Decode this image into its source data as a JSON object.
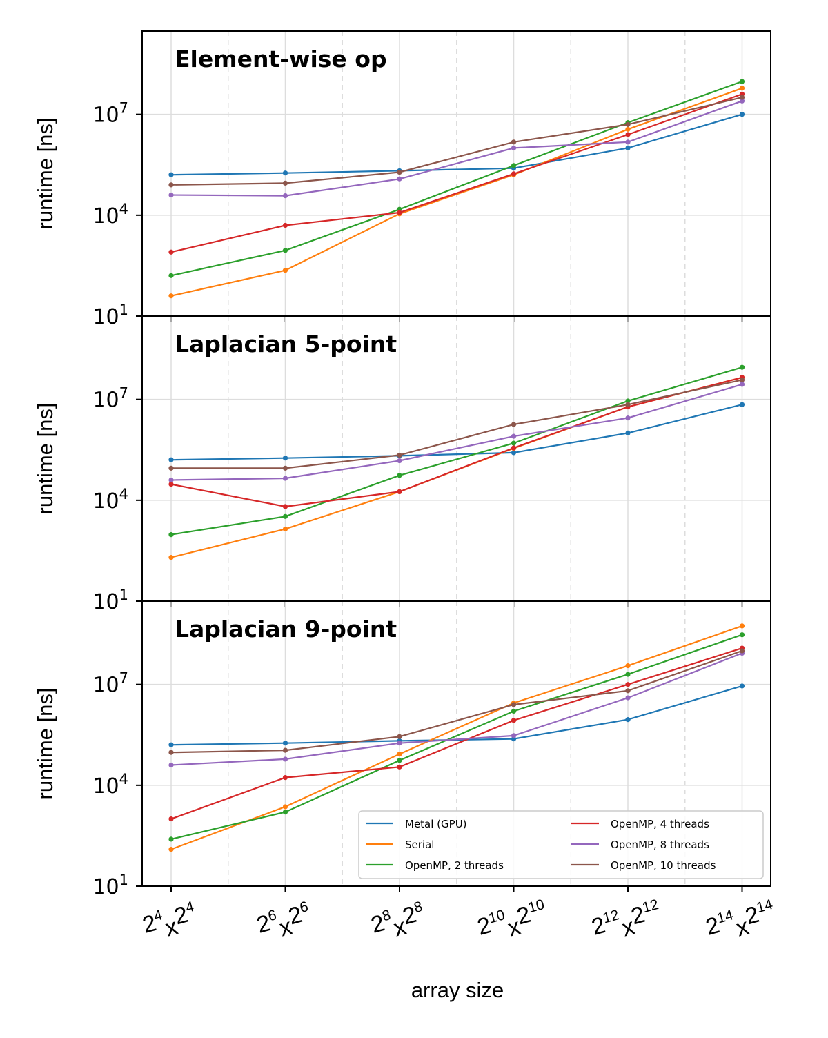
{
  "chart_data": {
    "type": "line",
    "xlabel": "array size",
    "ylabel": "runtime [ns]",
    "yscale": "log",
    "ylim": [
      10,
      3000000000
    ],
    "grid": true,
    "legend_placement": "lower-right",
    "x_ticks": [
      {
        "base": "2",
        "exp": "4",
        "mid": "x",
        "base2": "2",
        "exp2": "4"
      },
      {
        "base": "2",
        "exp": "6",
        "mid": "x",
        "base2": "2",
        "exp2": "6"
      },
      {
        "base": "2",
        "exp": "8",
        "mid": "x",
        "base2": "2",
        "exp2": "8"
      },
      {
        "base": "2",
        "exp": "10",
        "mid": "x",
        "base2": "2",
        "exp2": "10"
      },
      {
        "base": "2",
        "exp": "12",
        "mid": "x",
        "base2": "2",
        "exp2": "12"
      },
      {
        "base": "2",
        "exp": "14",
        "mid": "x",
        "base2": "2",
        "exp2": "14"
      }
    ],
    "y_ticks": [
      {
        "base": "10",
        "exp": "1",
        "value": 10
      },
      {
        "base": "10",
        "exp": "4",
        "value": 10000
      },
      {
        "base": "10",
        "exp": "7",
        "value": 10000000
      }
    ],
    "series_styles": [
      {
        "name": "Metal (GPU)",
        "color": "#1f77b4"
      },
      {
        "name": "Serial",
        "color": "#ff7f0e"
      },
      {
        "name": "OpenMP, 2 threads",
        "color": "#2ca02c"
      },
      {
        "name": "OpenMP, 4 threads",
        "color": "#d62728"
      },
      {
        "name": "OpenMP, 8 threads",
        "color": "#9467bd"
      },
      {
        "name": "OpenMP, 10 threads",
        "color": "#8c564b"
      }
    ],
    "panels": [
      {
        "title": "Element-wise op",
        "series": [
          {
            "name": "Metal (GPU)",
            "values": [
              160000,
              180000,
              210000,
              250000,
              1000000,
              10000000
            ]
          },
          {
            "name": "Serial",
            "values": [
              40,
              230,
              11000,
              160000,
              3600000,
              60000000
            ]
          },
          {
            "name": "OpenMP, 2 threads",
            "values": [
              160,
              900,
              15000,
              300000,
              5700000,
              95000000
            ]
          },
          {
            "name": "OpenMP, 4 threads",
            "values": [
              800,
              5000,
              12000,
              170000,
              2500000,
              40000000
            ]
          },
          {
            "name": "OpenMP, 8 threads",
            "values": [
              40000,
              38000,
              120000,
              1000000,
              1500000,
              25000000
            ]
          },
          {
            "name": "OpenMP, 10 threads",
            "values": [
              80000,
              90000,
              190000,
              1500000,
              5000000,
              32000000
            ]
          }
        ]
      },
      {
        "title": "Laplacian 5-point",
        "series": [
          {
            "name": "Metal (GPU)",
            "values": [
              160000,
              180000,
              210000,
              260000,
              1000000,
              7000000
            ]
          },
          {
            "name": "Serial",
            "values": [
              200,
              1400,
              18000,
              350000,
              6000000,
              45000000
            ]
          },
          {
            "name": "OpenMP, 2 threads",
            "values": [
              950,
              3300,
              55000,
              500000,
              9000000,
              90000000
            ]
          },
          {
            "name": "OpenMP, 4 threads",
            "values": [
              30000,
              6500,
              18000,
              360000,
              6000000,
              45000000
            ]
          },
          {
            "name": "OpenMP, 8 threads",
            "values": [
              40000,
              45000,
              150000,
              800000,
              2800000,
              28000000
            ]
          },
          {
            "name": "OpenMP, 10 threads",
            "values": [
              90000,
              90000,
              220000,
              1800000,
              7000000,
              38000000
            ]
          }
        ]
      },
      {
        "title": "Laplacian 9-point",
        "series": [
          {
            "name": "Metal (GPU)",
            "values": [
              160000,
              180000,
              210000,
              240000,
              900000,
              9000000
            ]
          },
          {
            "name": "Serial",
            "values": [
              125,
              2300,
              85000,
              2800000,
              36000000,
              550000000
            ]
          },
          {
            "name": "OpenMP, 2 threads",
            "values": [
              250,
              1600,
              55000,
              1600000,
              20000000,
              300000000
            ]
          },
          {
            "name": "OpenMP, 4 threads",
            "values": [
              1000,
              17000,
              35000,
              850000,
              10000000,
              120000000
            ]
          },
          {
            "name": "OpenMP, 8 threads",
            "values": [
              40000,
              60000,
              180000,
              300000,
              4000000,
              85000000
            ]
          },
          {
            "name": "OpenMP, 10 threads",
            "values": [
              95000,
              110000,
              280000,
              2500000,
              6500000,
              100000000
            ]
          }
        ]
      }
    ]
  }
}
